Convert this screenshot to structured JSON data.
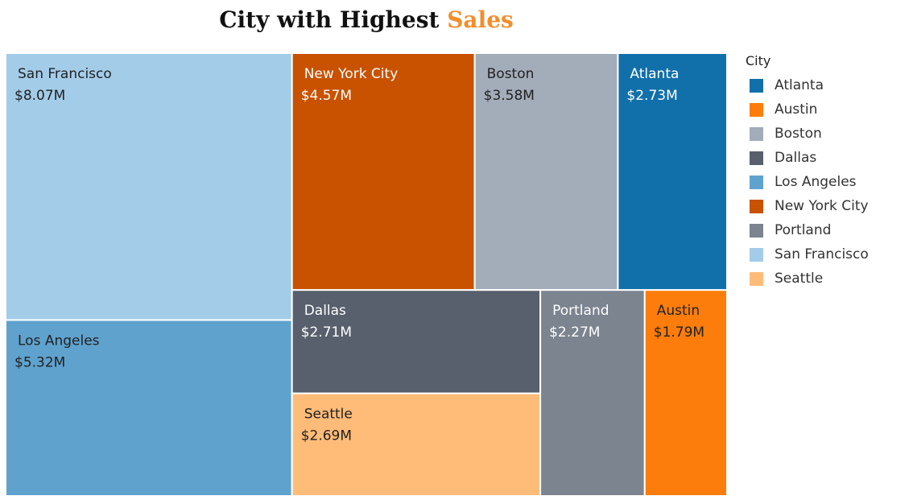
{
  "title": {
    "part1": "City with Highest ",
    "part2": "Sales"
  },
  "legend": {
    "title": "City",
    "items": [
      {
        "label": "Atlanta",
        "color": "#1170AA"
      },
      {
        "label": "Austin",
        "color": "#FC7D0B"
      },
      {
        "label": "Boston",
        "color": "#A3ACB9"
      },
      {
        "label": "Dallas",
        "color": "#57606C"
      },
      {
        "label": "Los Angeles",
        "color": "#5FA2CE"
      },
      {
        "label": "New York City",
        "color": "#C85200"
      },
      {
        "label": "Portland",
        "color": "#7B848F"
      },
      {
        "label": "San Francisco",
        "color": "#A3CCE9"
      },
      {
        "label": "Seattle",
        "color": "#FFBC79"
      }
    ]
  },
  "chart_data": {
    "type": "treemap",
    "title": "City with Highest Sales",
    "series": [
      {
        "name": "San Francisco",
        "value": 8.07,
        "label": "$8.07M",
        "color": "#A3CCE9",
        "text_color": "#222222"
      },
      {
        "name": "Los Angeles",
        "value": 5.32,
        "label": "$5.32M",
        "color": "#5FA2CE",
        "text_color": "#222222"
      },
      {
        "name": "New York City",
        "value": 4.57,
        "label": "$4.57M",
        "color": "#C85200",
        "text_color": "#ffffff"
      },
      {
        "name": "Boston",
        "value": 3.58,
        "label": "$3.58M",
        "color": "#A3ACB9",
        "text_color": "#222222"
      },
      {
        "name": "Atlanta",
        "value": 2.73,
        "label": "$2.73M",
        "color": "#1170AA",
        "text_color": "#ffffff"
      },
      {
        "name": "Dallas",
        "value": 2.71,
        "label": "$2.71M",
        "color": "#57606C",
        "text_color": "#ffffff"
      },
      {
        "name": "Seattle",
        "value": 2.69,
        "label": "$2.69M",
        "color": "#FFBC79",
        "text_color": "#222222"
      },
      {
        "name": "Portland",
        "value": 2.27,
        "label": "$2.27M",
        "color": "#7B848F",
        "text_color": "#ffffff"
      },
      {
        "name": "Austin",
        "value": 1.79,
        "label": "$1.79M",
        "color": "#FC7D0B",
        "text_color": "#222222"
      }
    ],
    "unit": "M"
  }
}
